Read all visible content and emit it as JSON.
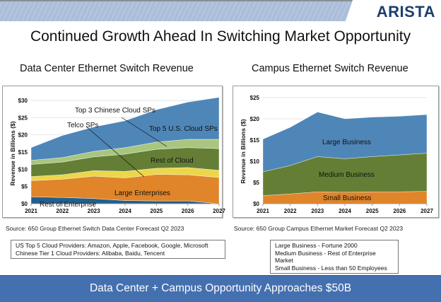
{
  "header": {
    "logo": "ARISTA",
    "title": "Continued Growth Ahead In Switching Market Opportunity"
  },
  "colors": {
    "banner": "#b2c4de",
    "logo": "#1d3f6e",
    "bottom_bar": "#4470b0"
  },
  "chart_data": [
    {
      "type": "area",
      "stacked": true,
      "title": "Data Center Ethernet Switch Revenue",
      "xlabel": "",
      "ylabel": "Revenue in Billions ($)",
      "x": [
        "2021",
        "2022",
        "2023",
        "2024",
        "2025",
        "2026",
        "2027"
      ],
      "ylim": [
        0,
        30
      ],
      "yticks": [
        "$0",
        "$5",
        "$10",
        "$15",
        "$20",
        "$25",
        "$30"
      ],
      "grid": true,
      "series": [
        {
          "name": "Rest of Enterprise",
          "color": "#245f8c",
          "values": [
            2.0,
            1.8,
            1.5,
            0.9,
            0.8,
            0.8,
            0.0
          ]
        },
        {
          "name": "Large Enterprises",
          "color": "#e0852a",
          "values": [
            4.7,
            5.3,
            6.5,
            6.6,
            7.7,
            7.6,
            7.6
          ]
        },
        {
          "name": "Telco SPs",
          "color": "#ecd64a",
          "values": [
            1.2,
            1.3,
            1.6,
            1.9,
            1.8,
            2.1,
            2.1
          ]
        },
        {
          "name": "Rest of Cloud",
          "color": "#647f35",
          "values": [
            3.5,
            3.7,
            4.0,
            5.0,
            5.5,
            5.8,
            6.3
          ]
        },
        {
          "name": "Top 3 Chinese Cloud SPs",
          "color": "#a9c67f",
          "values": [
            1.2,
            1.3,
            1.6,
            1.9,
            2.1,
            2.4,
            2.7
          ]
        },
        {
          "name": "Top 5 U.S. Cloud SPs",
          "color": "#4f86b8",
          "values": [
            3.7,
            6.4,
            7.1,
            7.8,
            9.4,
            10.8,
            12.2
          ]
        }
      ],
      "annotations": [
        {
          "text": "Top 3 Chinese Cloud SPs",
          "points_to": "Top 3 Chinese Cloud SPs"
        },
        {
          "text": "Telco SPs",
          "points_to": "Telco SPs"
        },
        {
          "text": "Top 5 U.S. Cloud SPs"
        },
        {
          "text": "Rest of Cloud"
        },
        {
          "text": "Large Enterprises"
        },
        {
          "text": "Rest of Enterprise"
        }
      ],
      "source": "Source: 650 Group Ethernet Switch Data Center Forecast Q2 2023",
      "notes": [
        "US Top 5 Cloud Providers: Amazon, Apple, Facebook, Google, Microsoft",
        "Chinese Tier 1 Cloud Providers: Alibaba, Baidu, Tencent"
      ]
    },
    {
      "type": "area",
      "stacked": true,
      "title": "Campus Ethernet Switch Revenue",
      "xlabel": "",
      "ylabel": "Revenue in Billions ($)",
      "x": [
        "2021",
        "2022",
        "2023",
        "2024",
        "2025",
        "2026",
        "2027"
      ],
      "ylim": [
        0,
        25
      ],
      "yticks": [
        "$0",
        "$5",
        "$10",
        "$15",
        "$20",
        "$25"
      ],
      "grid": true,
      "series": [
        {
          "name": "Small Business",
          "color": "#e0852a",
          "values": [
            1.9,
            2.3,
            2.8,
            2.7,
            2.8,
            2.8,
            2.9
          ]
        },
        {
          "name": "Medium Business",
          "color": "#647f35",
          "values": [
            5.6,
            6.7,
            8.3,
            7.9,
            8.3,
            8.7,
            9.0
          ]
        },
        {
          "name": "Large Business",
          "color": "#4f86b8",
          "values": [
            7.7,
            9.0,
            10.5,
            9.4,
            9.3,
            9.1,
            9.1
          ]
        }
      ],
      "annotations": [
        {
          "text": "Large Business"
        },
        {
          "text": "Medium Business"
        },
        {
          "text": "Small Business"
        }
      ],
      "source": "Source: 650 Group Campus Ethernet Market Forecast Q2 2023",
      "notes": [
        "Large Business - Fortune 2000",
        "Medium Business - Rest of Enterprise Market",
        "Small Business - Less than 50 Employees"
      ]
    }
  ],
  "footer": {
    "banner_text": "Data Center + Campus Opportunity Approaches $50B"
  }
}
